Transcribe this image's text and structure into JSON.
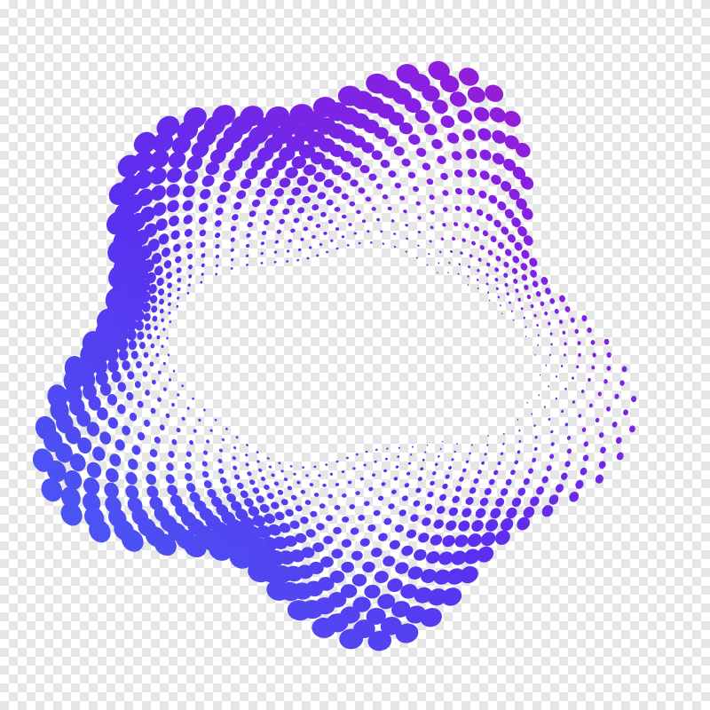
{
  "image": {
    "subject": "halftone-dot-wavy-ring",
    "background": "transparency-checkerboard",
    "colors": {
      "checker_light": "#ffffff",
      "checker_dark": "#e6e6e6",
      "gradient_blue": "#3f6ff5",
      "gradient_indigo": "#5b2ff0",
      "gradient_purple": "#8a1fe0",
      "gradient_magenta": "#d0208e"
    }
  }
}
